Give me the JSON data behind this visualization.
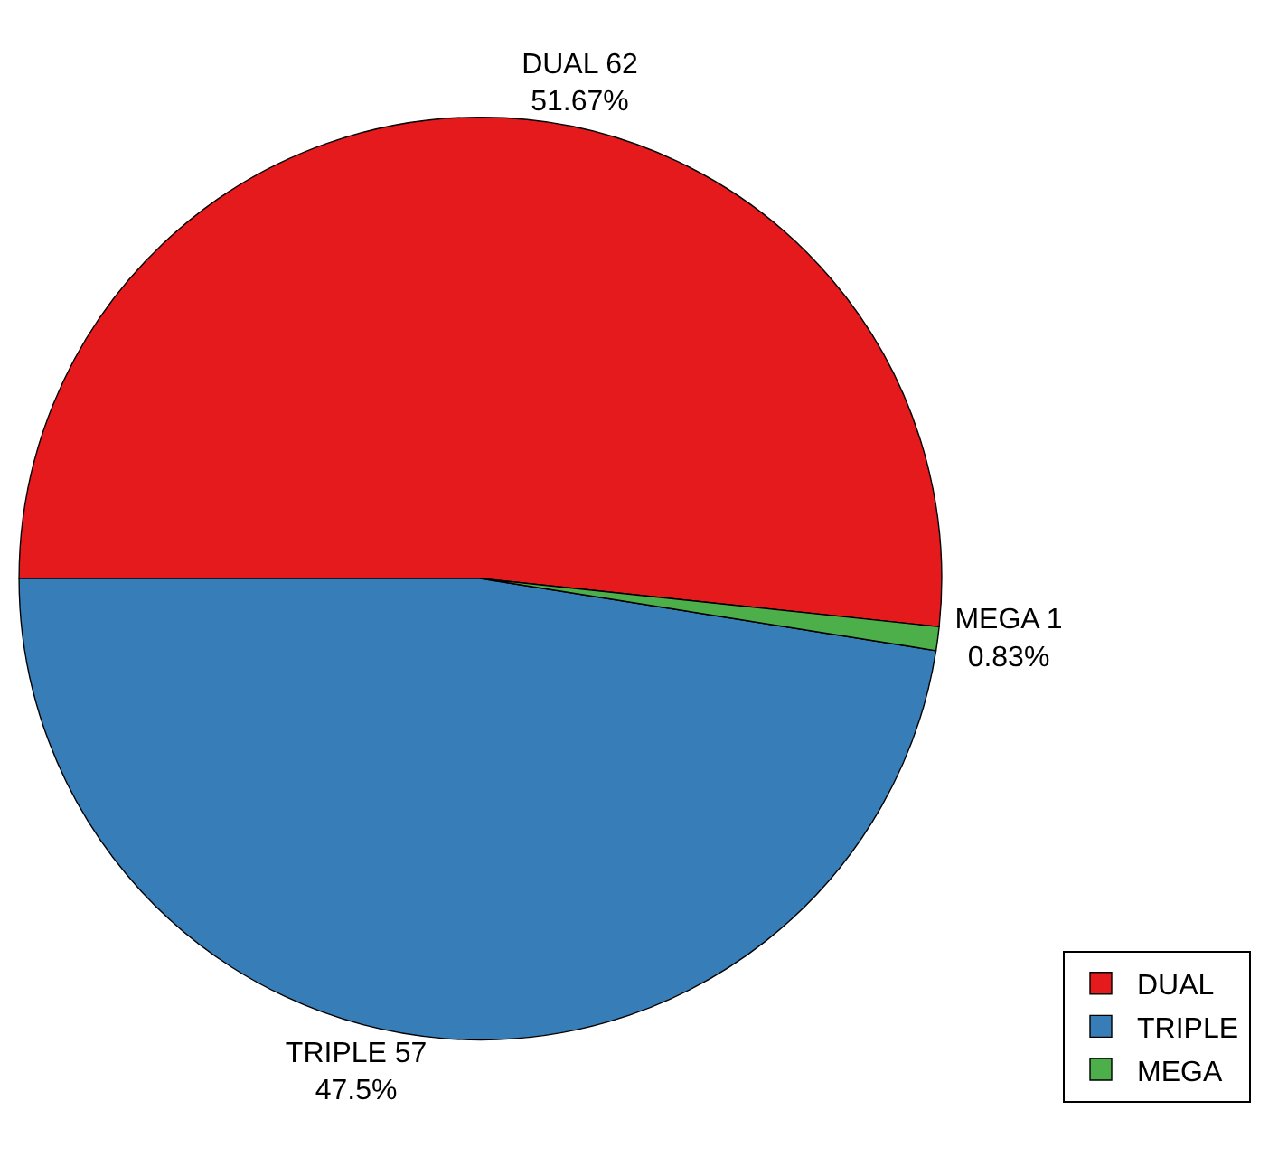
{
  "chart_data": {
    "type": "pie",
    "categories": [
      "DUAL",
      "TRIPLE",
      "MEGA"
    ],
    "values": [
      62,
      57,
      1
    ],
    "colors": [
      "#e41a1c",
      "#377eb8",
      "#4daf4a"
    ],
    "value_labels": [
      "DUAL 62\n51.67%",
      "TRIPLE 57\n47.5%",
      "MEGA 1\n0.83%"
    ],
    "legend": "bottom right"
  }
}
